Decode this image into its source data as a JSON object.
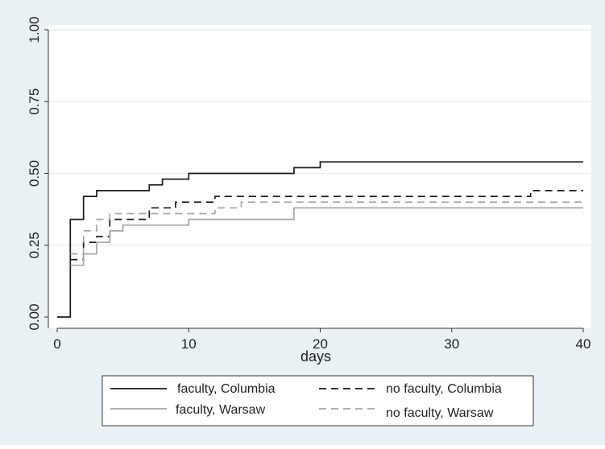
{
  "chart_data": {
    "type": "line",
    "step": true,
    "title": "",
    "xlabel": "days",
    "ylabel": "",
    "xlim": [
      0,
      40
    ],
    "ylim": [
      0,
      1
    ],
    "xticks": [
      0,
      10,
      20,
      30,
      40
    ],
    "yticks": [
      0,
      0.25,
      0.5,
      0.75,
      1
    ],
    "x_tick_labels": [
      "0",
      "10",
      "20",
      "30",
      "40"
    ],
    "y_tick_labels": [
      "0.00",
      "0.25",
      "0.50",
      "0.75",
      "1.00"
    ],
    "grid": "horizontal",
    "legend_position": "bottom",
    "series": [
      {
        "name": "faculty, Columbia",
        "color": "#1a1a1a",
        "dash": "solid",
        "points": [
          [
            0,
            0
          ],
          [
            1,
            0
          ],
          [
            1,
            0.34
          ],
          [
            2,
            0.34
          ],
          [
            2,
            0.42
          ],
          [
            3,
            0.42
          ],
          [
            3,
            0.44
          ],
          [
            7,
            0.44
          ],
          [
            7,
            0.46
          ],
          [
            8,
            0.46
          ],
          [
            8,
            0.48
          ],
          [
            10,
            0.48
          ],
          [
            10,
            0.5
          ],
          [
            18,
            0.5
          ],
          [
            18,
            0.52
          ],
          [
            20,
            0.52
          ],
          [
            20,
            0.54
          ],
          [
            40,
            0.54
          ]
        ]
      },
      {
        "name": "no faculty, Columbia",
        "color": "#1a1a1a",
        "dash": "dashed",
        "points": [
          [
            1,
            0.2
          ],
          [
            2,
            0.2
          ],
          [
            2,
            0.26
          ],
          [
            3,
            0.26
          ],
          [
            3,
            0.28
          ],
          [
            4,
            0.28
          ],
          [
            4,
            0.34
          ],
          [
            7,
            0.34
          ],
          [
            7,
            0.38
          ],
          [
            9,
            0.38
          ],
          [
            9,
            0.4
          ],
          [
            12,
            0.4
          ],
          [
            12,
            0.42
          ],
          [
            36,
            0.42
          ],
          [
            36,
            0.44
          ],
          [
            40,
            0.44
          ]
        ]
      },
      {
        "name": "faculty, Warsaw",
        "color": "#a6a6a6",
        "dash": "solid",
        "points": [
          [
            1,
            0.18
          ],
          [
            2,
            0.18
          ],
          [
            2,
            0.22
          ],
          [
            3,
            0.22
          ],
          [
            3,
            0.26
          ],
          [
            4,
            0.26
          ],
          [
            4,
            0.3
          ],
          [
            5,
            0.3
          ],
          [
            5,
            0.32
          ],
          [
            10,
            0.32
          ],
          [
            10,
            0.34
          ],
          [
            18,
            0.34
          ],
          [
            18,
            0.38
          ],
          [
            40,
            0.38
          ]
        ]
      },
      {
        "name": "no faculty, Warsaw",
        "color": "#a6a6a6",
        "dash": "dashed",
        "points": [
          [
            1,
            0.22
          ],
          [
            2,
            0.22
          ],
          [
            2,
            0.3
          ],
          [
            3,
            0.3
          ],
          [
            3,
            0.34
          ],
          [
            4,
            0.34
          ],
          [
            4,
            0.36
          ],
          [
            12,
            0.36
          ],
          [
            12,
            0.38
          ],
          [
            14,
            0.38
          ],
          [
            14,
            0.4
          ],
          [
            40,
            0.4
          ]
        ]
      }
    ]
  }
}
